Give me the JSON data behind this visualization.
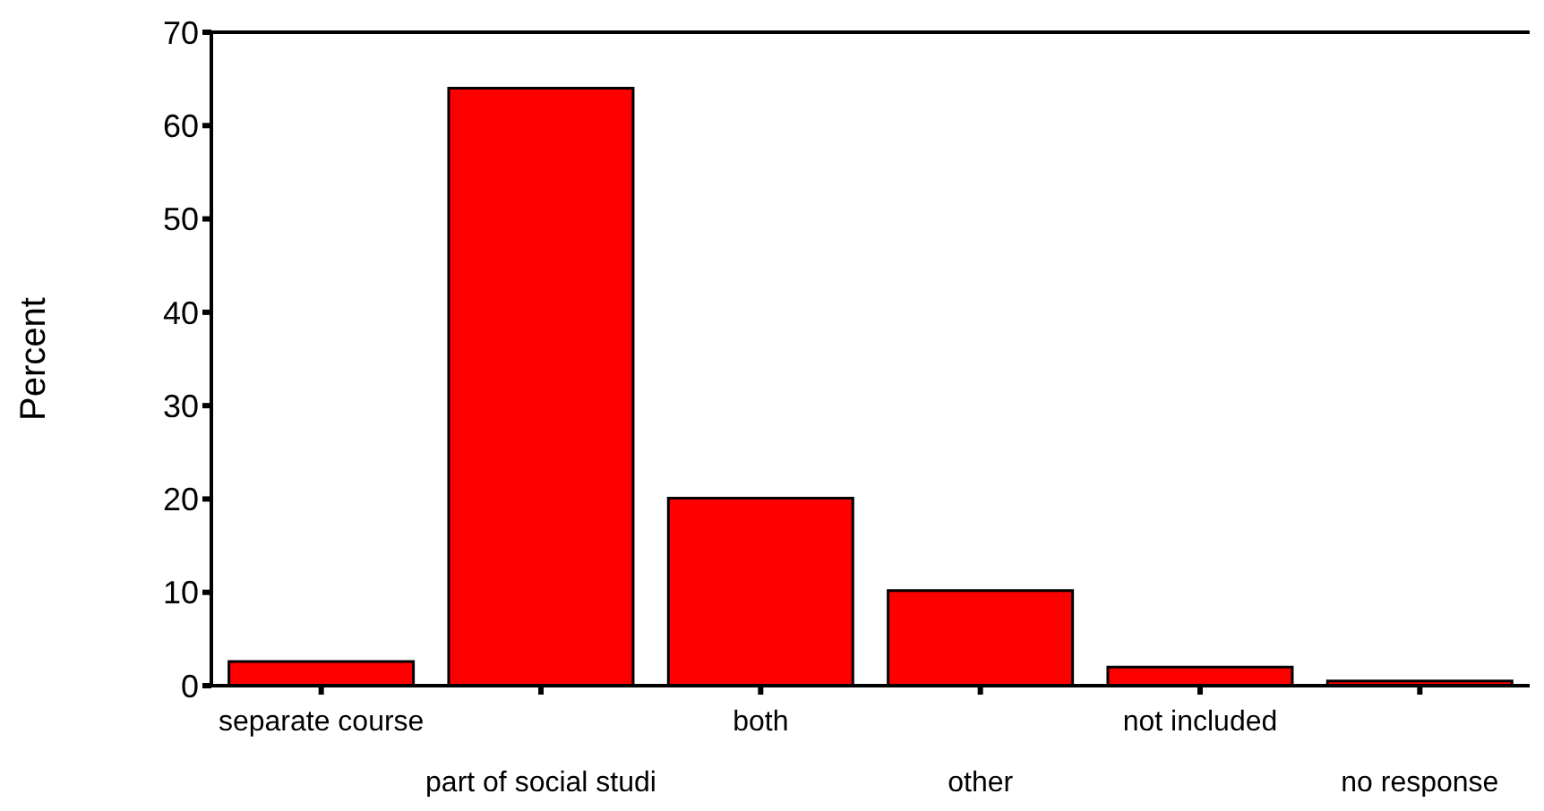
{
  "chart_data": {
    "type": "bar",
    "ylabel": "Percent",
    "categories": [
      "separate course",
      "part of social studi",
      "both",
      "other",
      "not included",
      "no response"
    ],
    "values": [
      2.6,
      64,
      20.1,
      10.2,
      2,
      0.5
    ],
    "color": "#ff0000",
    "ylim": [
      0,
      70
    ],
    "yticks": [
      0,
      10,
      20,
      30,
      40,
      50,
      60,
      70
    ]
  }
}
